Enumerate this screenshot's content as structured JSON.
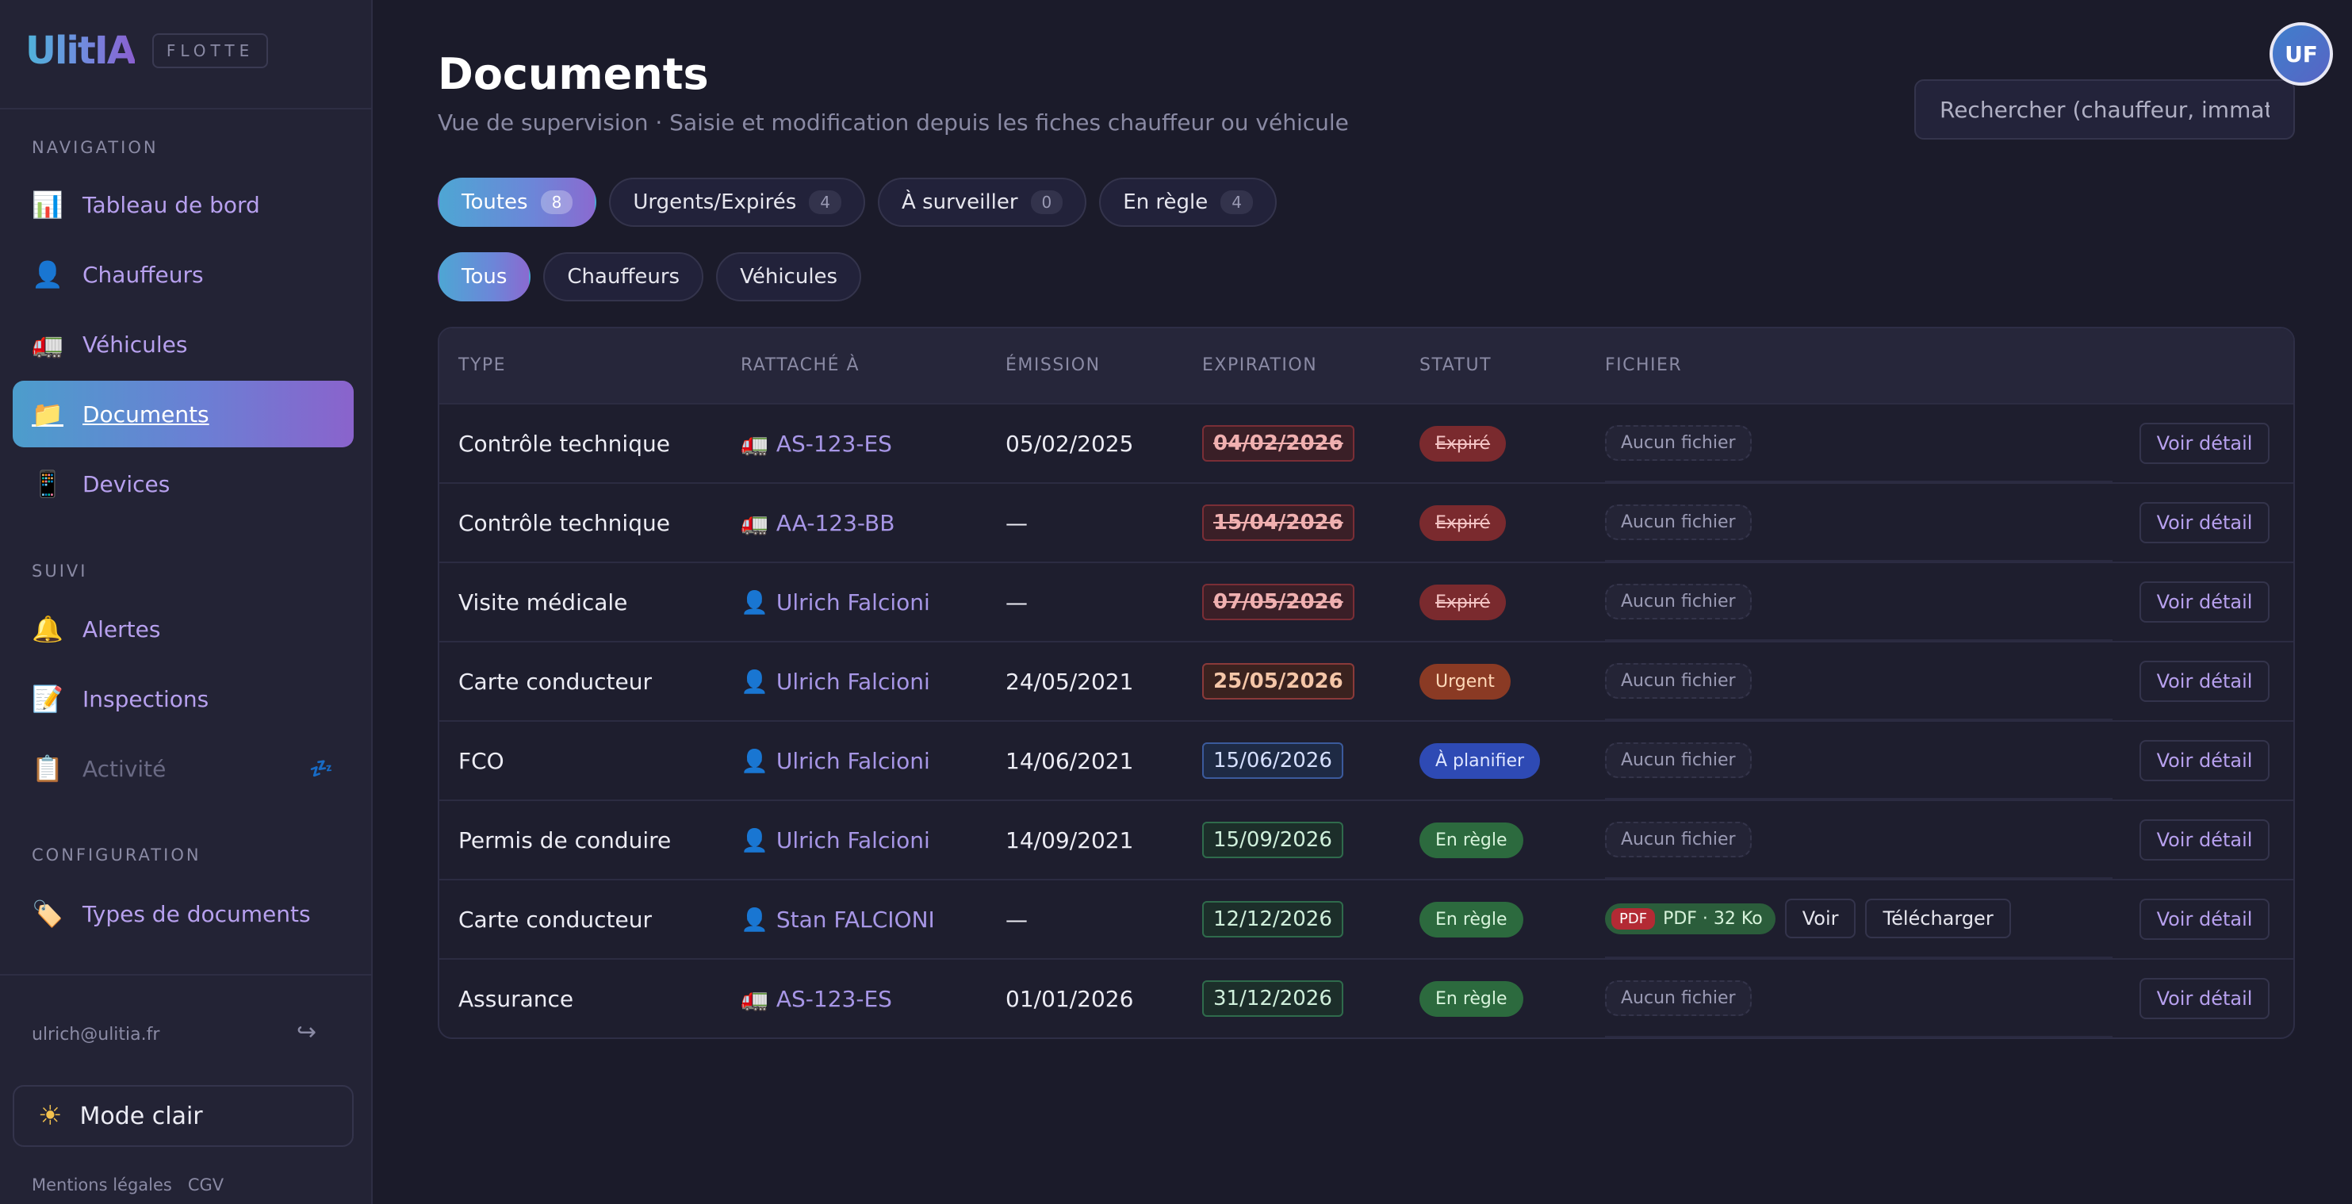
{
  "brand": {
    "logo": "UlitIA",
    "tag": "FLOTTE"
  },
  "sidebar": {
    "sections": {
      "navigation": "NAVIGATION",
      "suivi": "SUIVI",
      "configuration": "CONFIGURATION"
    },
    "items": [
      {
        "label": "Tableau de bord",
        "icon": "chart-icon"
      },
      {
        "label": "Chauffeurs",
        "icon": "person-icon"
      },
      {
        "label": "Véhicules",
        "icon": "truck-icon"
      },
      {
        "label": "Documents",
        "icon": "folder-icon"
      },
      {
        "label": "Devices",
        "icon": "phone-icon"
      },
      {
        "label": "Alertes",
        "icon": "bell-icon"
      },
      {
        "label": "Inspections",
        "icon": "memo-icon"
      },
      {
        "label": "Activité",
        "icon": "clipboard-icon"
      },
      {
        "label": "Types de documents",
        "icon": "label-icon"
      }
    ],
    "user_email": "ulrich@ulitia.fr",
    "mode_label": "Mode clair",
    "footer": {
      "legal": "Mentions légales",
      "cgv": "CGV"
    }
  },
  "header": {
    "title": "Documents",
    "subtitle": "Vue de supervision · Saisie et modification depuis les fiches chauffeur ou véhicule",
    "search_placeholder": "Rechercher (chauffeur, immat,",
    "avatar": "UF"
  },
  "filters": {
    "status": [
      {
        "label": "Toutes",
        "count": "8"
      },
      {
        "label": "Urgents/Expirés",
        "count": "4"
      },
      {
        "label": "À surveiller",
        "count": "0"
      },
      {
        "label": "En règle",
        "count": "4"
      }
    ],
    "scope": [
      "Tous",
      "Chauffeurs",
      "Véhicules"
    ]
  },
  "table": {
    "columns": [
      "TYPE",
      "RATTACHÉ À",
      "ÉMISSION",
      "EXPIRATION",
      "STATUT",
      "FICHIER"
    ],
    "rows": [
      {
        "type": "Contrôle technique",
        "attached": "AS-123-ES",
        "emission": "05/02/2025",
        "expiration": "04/02/2026",
        "status": "Expiré",
        "file": "Aucun fichier",
        "action": "Voir détail"
      },
      {
        "type": "Contrôle technique",
        "attached": "AA-123-BB",
        "emission": "—",
        "expiration": "15/04/2026",
        "status": "Expiré",
        "file": "Aucun fichier",
        "action": "Voir détail"
      },
      {
        "type": "Visite médicale",
        "attached": "Ulrich Falcioni",
        "emission": "—",
        "expiration": "07/05/2026",
        "status": "Expiré",
        "file": "Aucun fichier",
        "action": "Voir détail"
      },
      {
        "type": "Carte conducteur",
        "attached": "Ulrich Falcioni",
        "emission": "24/05/2021",
        "expiration": "25/05/2026",
        "status": "Urgent",
        "file": "Aucun fichier",
        "action": "Voir détail"
      },
      {
        "type": "FCO",
        "attached": "Ulrich Falcioni",
        "emission": "14/06/2021",
        "expiration": "15/06/2026",
        "status": "À planifier",
        "file": "Aucun fichier",
        "action": "Voir détail"
      },
      {
        "type": "Permis de conduire",
        "attached": "Ulrich Falcioni",
        "emission": "14/09/2021",
        "expiration": "15/09/2026",
        "status": "En règle",
        "file": "Aucun fichier",
        "action": "Voir détail"
      },
      {
        "type": "Carte conducteur",
        "attached": "Stan FALCIONI",
        "emission": "—",
        "expiration": "12/12/2026",
        "status": "En règle",
        "file_tag": "PDF",
        "file_info": "PDF · 32 Ko",
        "file_view": "Voir",
        "file_download": "Télécharger",
        "action": "Voir détail"
      },
      {
        "type": "Assurance",
        "attached": "AS-123-ES",
        "emission": "01/01/2026",
        "expiration": "31/12/2026",
        "status": "En règle",
        "file": "Aucun fichier",
        "action": "Voir détail"
      }
    ]
  }
}
